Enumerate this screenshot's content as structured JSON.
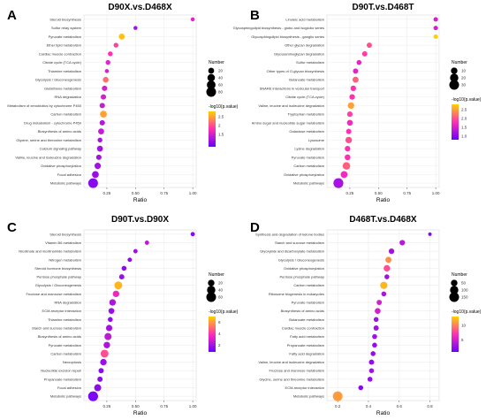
{
  "figure": {
    "colorbar_low": "#6a00ff",
    "colorbar_mid": "#ff2fb4",
    "colorbar_high": "#ffd000"
  },
  "chart_data": [
    {
      "panel_label": "A",
      "title": "D90X.vs.D468X",
      "type": "scatter",
      "xlabel": "Ratio",
      "ylabel": "",
      "x_ticks": [
        "0.25",
        "0.50",
        "0.75",
        "1.00"
      ],
      "xlim": [
        0.05,
        1.03
      ],
      "grid": true,
      "legend_position": "right",
      "size_legend": {
        "title": "Number",
        "values": [
          20,
          40,
          60,
          80
        ]
      },
      "color_legend": {
        "title": "-log10(p.value)",
        "ticks": [
          "2.5",
          "2",
          "1.5"
        ],
        "range": [
          0.8,
          2.8
        ]
      },
      "categories": [
        "Steroid biosynthesis",
        "Sulfur relay system",
        "Pyruvate metabolism",
        "Ether lipid metabolism",
        "Cardiac muscle contraction",
        "Citrate cycle (TCA cycle)",
        "Thiamine metabolism",
        "Glycolysis / Gluconeogenesis",
        "Glutathione metabolism",
        "RNA degradation",
        "Metabolism of xenobiotics by cytochrome P450",
        "Carbon metabolism",
        "Drug metabolism - cytochrome P450",
        "Biosynthesis of amino acids",
        "Glycine, serine and threonine metabolism",
        "Calcium signaling pathway",
        "Valine, leucine and isoleucine degradation",
        "Oxidative phosphorylation",
        "Focal adhesion",
        "Metabolic pathways"
      ],
      "ratios": [
        1.0,
        0.5,
        0.38,
        0.33,
        0.28,
        0.26,
        0.25,
        0.24,
        0.23,
        0.22,
        0.21,
        0.22,
        0.21,
        0.2,
        0.19,
        0.19,
        0.18,
        0.17,
        0.15,
        0.13
      ],
      "numbers": [
        5,
        5,
        20,
        10,
        10,
        10,
        5,
        18,
        15,
        15,
        15,
        30,
        15,
        20,
        10,
        20,
        15,
        25,
        30,
        80
      ],
      "neg_log10_p": [
        1.6,
        1.2,
        2.7,
        1.9,
        1.8,
        1.6,
        1.5,
        2.2,
        1.5,
        1.5,
        1.4,
        2.5,
        1.3,
        1.4,
        1.2,
        1.2,
        1.2,
        1.2,
        1.1,
        1.0
      ]
    },
    {
      "panel_label": "B",
      "title": "D90T.vs.D468T",
      "type": "scatter",
      "xlabel": "Ratio",
      "ylabel": "",
      "x_ticks": [
        "0.25",
        "0.50",
        "0.75",
        "1.00"
      ],
      "xlim": [
        0.05,
        1.03
      ],
      "grid": true,
      "legend_position": "right",
      "size_legend": {
        "title": "Number",
        "values": [
          10,
          20,
          30
        ]
      },
      "color_legend": {
        "title": "-log10(p.value)",
        "ticks": [
          "2.5",
          "2.0",
          "1.5",
          "1.0"
        ],
        "range": [
          0.8,
          2.8
        ]
      },
      "categories": [
        "Linoleic acid metabolism",
        "Glycosphingolipid biosynthesis - globo and isoglobo series",
        "Glycosphingolipid biosynthesis - ganglio series",
        "Other glycan degradation",
        "Glycosaminoglycan degradation",
        "Sulfur metabolism",
        "Other types of O-glycan biosynthesis",
        "Butanoate metabolism",
        "SNARE interactions in vesicular transport",
        "Citrate cycle (TCA cycle)",
        "Valine, leucine and isoleucine degradation",
        "Tryptophan metabolism",
        "Amino sugar and nucleotide sugar metabolism",
        "Galactose metabolism",
        "Lysosome",
        "Lysine degradation",
        "Pyruvate metabolism",
        "Carbon metabolism",
        "Oxidative phosphorylation",
        "Metabolic pathways"
      ],
      "ratios": [
        1.0,
        1.0,
        1.0,
        0.42,
        0.38,
        0.33,
        0.3,
        0.3,
        0.28,
        0.27,
        0.26,
        0.25,
        0.25,
        0.24,
        0.24,
        0.23,
        0.23,
        0.22,
        0.2,
        0.15
      ],
      "numbers": [
        3,
        3,
        3,
        5,
        5,
        4,
        5,
        8,
        6,
        6,
        10,
        6,
        7,
        5,
        10,
        6,
        7,
        15,
        12,
        35
      ],
      "neg_log10_p": [
        1.5,
        1.5,
        2.8,
        2.0,
        1.9,
        1.6,
        1.6,
        2.1,
        1.8,
        1.8,
        2.5,
        1.9,
        1.7,
        1.8,
        2.0,
        1.8,
        1.8,
        2.1,
        1.7,
        1.2
      ]
    },
    {
      "panel_label": "C",
      "title": "D90T.vs.D90X",
      "type": "scatter",
      "xlabel": "Ratio",
      "ylabel": "",
      "x_ticks": [
        "0.25",
        "0.50",
        "0.75",
        "1.00"
      ],
      "xlim": [
        0.05,
        1.03
      ],
      "grid": true,
      "legend_position": "right",
      "size_legend": {
        "title": "Number",
        "values": [
          20,
          40,
          60
        ]
      },
      "color_legend": {
        "title": "-log10(p.value)",
        "ticks": [
          "6",
          "4",
          "2"
        ],
        "range": [
          0.8,
          7.0
        ]
      },
      "categories": [
        "Steroid biosynthesis",
        "Vitamin B6 metabolism",
        "Nicotinate and nicotinamide metabolism",
        "Nitrogen metabolism",
        "Steroid hormone biosynthesis",
        "Pentose phosphate pathway",
        "Glycolysis / Gluconeogenesis",
        "Fructose and mannose metabolism",
        "RNA degradation",
        "ECM-receptor interaction",
        "Thiamine metabolism",
        "Starch and sucrose metabolism",
        "Biosynthesis of amino acids",
        "Pyruvate metabolism",
        "Carbon metabolism",
        "Necroptosis",
        "Nucleotide excision repair",
        "Propanoate metabolism",
        "Focal adhesion",
        "Metabolic pathways"
      ],
      "ratios": [
        1.0,
        0.6,
        0.5,
        0.45,
        0.4,
        0.38,
        0.35,
        0.33,
        0.3,
        0.29,
        0.28,
        0.27,
        0.26,
        0.25,
        0.23,
        0.22,
        0.2,
        0.19,
        0.17,
        0.13
      ],
      "numbers": [
        5,
        5,
        5,
        5,
        8,
        10,
        35,
        20,
        20,
        15,
        8,
        18,
        25,
        20,
        35,
        20,
        10,
        10,
        25,
        70
      ],
      "neg_log10_p": [
        1.5,
        2.5,
        2.0,
        1.5,
        1.5,
        1.8,
        6.5,
        3.5,
        2.2,
        1.8,
        1.6,
        2.0,
        2.5,
        2.2,
        4.5,
        1.8,
        1.5,
        1.5,
        1.6,
        1.2
      ]
    },
    {
      "panel_label": "D",
      "title": "D468T.vs.D468X",
      "type": "scatter",
      "xlabel": "Ratio",
      "ylabel": "",
      "x_ticks": [
        "0.2",
        "0.4",
        "0.6",
        "0.8"
      ],
      "xlim": [
        0.13,
        0.86
      ],
      "grid": true,
      "legend_position": "right",
      "size_legend": {
        "title": "Number",
        "values": [
          50,
          100,
          150
        ]
      },
      "color_legend": {
        "title": "-log10(p.value)",
        "ticks": [
          "10",
          "5"
        ],
        "range": [
          0.8,
          13.0
        ]
      },
      "categories": [
        "Synthesis and degradation of ketone bodies",
        "Starch and sucrose metabolism",
        "Glyoxylate and dicarboxylate metabolism",
        "Glycolysis / Gluconeogenesis",
        "Oxidative phosphorylation",
        "Pentose phosphate pathway",
        "Carbon metabolism",
        "Ribosome biogenesis in eukaryotes",
        "Pyruvate metabolism",
        "Biosynthesis of amino acids",
        "Butanoate metabolism",
        "Cardiac muscle contraction",
        "Fatty acid metabolism",
        "Propanoate metabolism",
        "Fatty acid degradation",
        "Valine, leucine and isoleucine degradation",
        "Fructose and mannose metabolism",
        "Glycine, serine and threonine metabolism",
        "ECM-receptor interaction",
        "Metabolic pathways"
      ],
      "ratios": [
        0.8,
        0.62,
        0.55,
        0.53,
        0.52,
        0.52,
        0.5,
        0.5,
        0.47,
        0.46,
        0.45,
        0.45,
        0.44,
        0.44,
        0.43,
        0.42,
        0.42,
        0.41,
        0.35,
        0.2
      ],
      "numbers": [
        5,
        30,
        30,
        40,
        50,
        20,
        70,
        20,
        25,
        35,
        20,
        25,
        20,
        20,
        20,
        25,
        20,
        20,
        20,
        150
      ],
      "neg_log10_p": [
        2.0,
        4.0,
        3.0,
        10.5,
        8.0,
        3.0,
        12.0,
        3.5,
        5.0,
        5.0,
        3.0,
        3.0,
        3.0,
        2.5,
        2.5,
        2.5,
        3.0,
        2.5,
        2.0,
        11.0
      ]
    }
  ]
}
